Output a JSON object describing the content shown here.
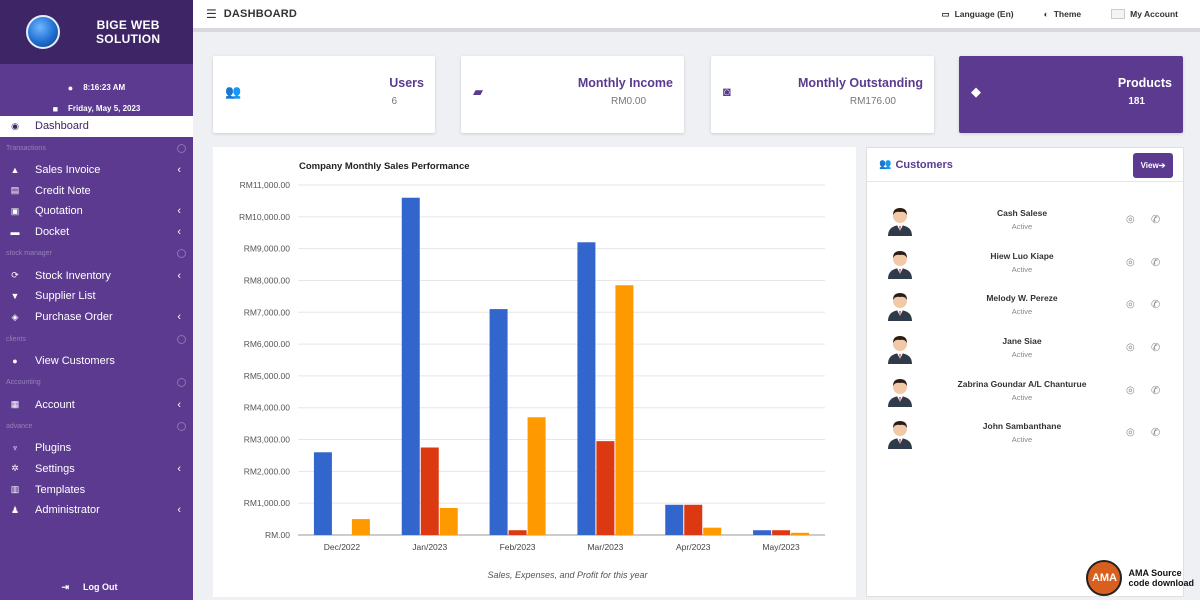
{
  "sidebar": {
    "brand": {
      "line1": "BIGE WEB",
      "line2": "SOLUTION"
    },
    "time": "8:16:23 AM",
    "date": "Friday, May 5, 2023",
    "items": [
      {
        "kind": "item",
        "label": "Dashboard",
        "icon": "gauge-icon",
        "glyph": "◉",
        "active": true,
        "chevron": false
      },
      {
        "kind": "section",
        "label": "Transactions"
      },
      {
        "kind": "item",
        "label": "Sales Invoice",
        "icon": "cubes-icon",
        "glyph": "▲",
        "chevron": true
      },
      {
        "kind": "item",
        "label": "Credit Note",
        "icon": "file-icon",
        "glyph": "▤",
        "chevron": false
      },
      {
        "kind": "item",
        "label": "Quotation",
        "icon": "quote-icon",
        "glyph": "▣",
        "chevron": true
      },
      {
        "kind": "item",
        "label": "Docket",
        "icon": "briefcase-icon",
        "glyph": "▬",
        "chevron": true
      },
      {
        "kind": "section",
        "label": "stock manager"
      },
      {
        "kind": "item",
        "label": "Stock Inventory",
        "icon": "sync-icon",
        "glyph": "⟳",
        "chevron": true
      },
      {
        "kind": "item",
        "label": "Supplier List",
        "icon": "truck-icon",
        "glyph": "▼",
        "chevron": false
      },
      {
        "kind": "item",
        "label": "Purchase Order",
        "icon": "cart-icon",
        "glyph": "◈",
        "chevron": true
      },
      {
        "kind": "section",
        "label": "clients"
      },
      {
        "kind": "item",
        "label": "View Customers",
        "icon": "user-icon",
        "glyph": "●",
        "chevron": false
      },
      {
        "kind": "section",
        "label": "Accounting"
      },
      {
        "kind": "item",
        "label": "Account",
        "icon": "bank-icon",
        "glyph": "▦",
        "chevron": true
      },
      {
        "kind": "section",
        "label": "advance"
      },
      {
        "kind": "item",
        "label": "Plugins",
        "icon": "plug-icon",
        "glyph": "♆",
        "chevron": false
      },
      {
        "kind": "item",
        "label": "Settings",
        "icon": "cogs-icon",
        "glyph": "✲",
        "chevron": true
      },
      {
        "kind": "item",
        "label": "Templates",
        "icon": "template-icon",
        "glyph": "▥",
        "chevron": false
      },
      {
        "kind": "item",
        "label": "Administrator",
        "icon": "user-shield-icon",
        "glyph": "♟",
        "chevron": true
      }
    ],
    "logout": "Log Out"
  },
  "topbar": {
    "title": "DASHBOARD",
    "language": "Language (En)",
    "theme": "Theme",
    "account": "My Account"
  },
  "cards": [
    {
      "title": "Users",
      "value": "6",
      "icon": "users-icon",
      "glyph": "👥",
      "dark": false
    },
    {
      "title": "Monthly Income",
      "value": "RM0.00",
      "icon": "wallet-icon",
      "glyph": "▰",
      "dark": false
    },
    {
      "title": "Monthly Outstanding",
      "value": "RM176.00",
      "icon": "money-bill-icon",
      "glyph": "◙",
      "dark": false
    },
    {
      "title": "Products",
      "value": "181",
      "icon": "layers-icon",
      "glyph": "◆",
      "dark": true
    }
  ],
  "chart_data": {
    "type": "bar",
    "title": "Company Monthly Sales Performance",
    "xlabel": "Sales, Expenses, and Profit for this year",
    "categories": [
      "Dec/2022",
      "Jan/2023",
      "Feb/2023",
      "Mar/2023",
      "Apr/2023",
      "May/2023"
    ],
    "ylim": [
      0,
      11000
    ],
    "yticks": [
      "RM.00",
      "RM1,000.00",
      "RM2,000.00",
      "RM3,000.00",
      "RM4,000.00",
      "RM5,000.00",
      "RM6,000.00",
      "RM7,000.00",
      "RM8,000.00",
      "RM9,000.00",
      "RM10,000.00",
      "RM11,000.00"
    ],
    "grid": true,
    "series": [
      {
        "values": [
          2600,
          10600,
          7100,
          9200,
          950,
          150
        ],
        "color": "#3366cc"
      },
      {
        "values": [
          0,
          2750,
          150,
          2950,
          950,
          150
        ],
        "color": "#dc3912"
      },
      {
        "values": [
          500,
          850,
          3700,
          7850,
          230,
          70
        ],
        "color": "#ff9900"
      }
    ]
  },
  "customers": {
    "title": "Customers",
    "view_label": "View",
    "list": [
      {
        "name": "Cash Salese",
        "status": "Active"
      },
      {
        "name": "Hiew Luo Kiape",
        "status": "Active"
      },
      {
        "name": "Melody W. Pereze",
        "status": "Active"
      },
      {
        "name": "Jane Siae",
        "status": "Active"
      },
      {
        "name": "Zabrina Goundar A/L Chanturue",
        "status": "Active"
      },
      {
        "name": "John Sambanthane",
        "status": "Active"
      }
    ]
  },
  "watermark": {
    "logo": "AMA",
    "line1": "AMA Source",
    "line2": "code download"
  }
}
